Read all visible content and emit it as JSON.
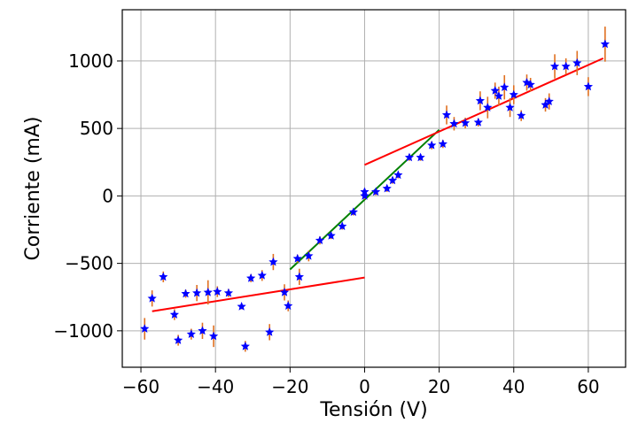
{
  "chart_data": {
    "type": "scatter",
    "xlabel": "Tensión (V)",
    "ylabel": "Corriente (mA)",
    "xlim": [
      -65,
      70
    ],
    "ylim": [
      -1270,
      1380
    ],
    "grid": true,
    "xticks": [
      -60,
      -40,
      -20,
      0,
      20,
      40,
      60
    ],
    "xtick_labels": [
      "−60",
      "−40",
      "−20",
      "0",
      "20",
      "40",
      "60"
    ],
    "yticks": [
      -1000,
      -500,
      0,
      500,
      1000
    ],
    "ytick_labels": [
      "−1000",
      "−500",
      "0",
      "500",
      "1000"
    ],
    "colors": {
      "points": "#0000ff",
      "errorbars": "#e07020",
      "fit_outer": "#ff0000",
      "fit_middle": "#008000",
      "grid": "#b0b0b0"
    },
    "points": [
      {
        "x": -59.0,
        "y": -985,
        "err": 80
      },
      {
        "x": -57.0,
        "y": -760,
        "err": 60
      },
      {
        "x": -54.0,
        "y": -600,
        "err": 40
      },
      {
        "x": -51.0,
        "y": -880,
        "err": 40
      },
      {
        "x": -50.0,
        "y": -1070,
        "err": 40
      },
      {
        "x": -48.0,
        "y": -725,
        "err": 30
      },
      {
        "x": -46.5,
        "y": -1025,
        "err": 40
      },
      {
        "x": -45.0,
        "y": -720,
        "err": 60
      },
      {
        "x": -43.5,
        "y": -1000,
        "err": 60
      },
      {
        "x": -42.0,
        "y": -715,
        "err": 90
      },
      {
        "x": -40.5,
        "y": -1040,
        "err": 80
      },
      {
        "x": -39.5,
        "y": -710,
        "err": 40
      },
      {
        "x": -36.5,
        "y": -720,
        "err": 30
      },
      {
        "x": -33.0,
        "y": -820,
        "err": 20
      },
      {
        "x": -32.0,
        "y": -1115,
        "err": 40
      },
      {
        "x": -30.5,
        "y": -610,
        "err": 30
      },
      {
        "x": -27.5,
        "y": -590,
        "err": 40
      },
      {
        "x": -25.5,
        "y": -1010,
        "err": 60
      },
      {
        "x": -24.5,
        "y": -490,
        "err": 60
      },
      {
        "x": -21.5,
        "y": -715,
        "err": 60
      },
      {
        "x": -20.5,
        "y": -815,
        "err": 40
      },
      {
        "x": -18.0,
        "y": -465,
        "err": 30
      },
      {
        "x": -17.5,
        "y": -600,
        "err": 60
      },
      {
        "x": -15.0,
        "y": -445,
        "err": 40
      },
      {
        "x": -12.0,
        "y": -330,
        "err": 30
      },
      {
        "x": -9.0,
        "y": -295,
        "err": 25
      },
      {
        "x": -6.0,
        "y": -225,
        "err": 25
      },
      {
        "x": -3.0,
        "y": -120,
        "err": 25
      },
      {
        "x": 0.0,
        "y": 30,
        "err": 25
      },
      {
        "x": 0.0,
        "y": 0,
        "err": 25
      },
      {
        "x": 3.0,
        "y": 30,
        "err": 25
      },
      {
        "x": 6.0,
        "y": 55,
        "err": 25
      },
      {
        "x": 7.5,
        "y": 115,
        "err": 25
      },
      {
        "x": 9.0,
        "y": 155,
        "err": 25
      },
      {
        "x": 12.0,
        "y": 285,
        "err": 25
      },
      {
        "x": 15.0,
        "y": 285,
        "err": 25
      },
      {
        "x": 18.0,
        "y": 375,
        "err": 30
      },
      {
        "x": 21.0,
        "y": 385,
        "err": 30
      },
      {
        "x": 22.0,
        "y": 600,
        "err": 70
      },
      {
        "x": 24.0,
        "y": 535,
        "err": 50
      },
      {
        "x": 27.0,
        "y": 540,
        "err": 40
      },
      {
        "x": 30.5,
        "y": 545,
        "err": 30
      },
      {
        "x": 31.0,
        "y": 705,
        "err": 70
      },
      {
        "x": 33.0,
        "y": 655,
        "err": 80
      },
      {
        "x": 35.0,
        "y": 780,
        "err": 60
      },
      {
        "x": 36.0,
        "y": 740,
        "err": 70
      },
      {
        "x": 37.5,
        "y": 805,
        "err": 90
      },
      {
        "x": 39.0,
        "y": 655,
        "err": 70
      },
      {
        "x": 40.0,
        "y": 750,
        "err": 70
      },
      {
        "x": 42.0,
        "y": 595,
        "err": 40
      },
      {
        "x": 43.5,
        "y": 840,
        "err": 60
      },
      {
        "x": 44.5,
        "y": 825,
        "err": 50
      },
      {
        "x": 48.5,
        "y": 675,
        "err": 50
      },
      {
        "x": 49.5,
        "y": 700,
        "err": 60
      },
      {
        "x": 51.0,
        "y": 960,
        "err": 90
      },
      {
        "x": 54.0,
        "y": 960,
        "err": 60
      },
      {
        "x": 57.0,
        "y": 985,
        "err": 90
      },
      {
        "x": 60.0,
        "y": 810,
        "err": 70
      },
      {
        "x": 64.5,
        "y": 1125,
        "err": 130
      }
    ],
    "fit_lines": [
      {
        "color": "#ff0000",
        "x": [
          -57,
          0
        ],
        "y": [
          -855,
          -605
        ]
      },
      {
        "color": "#008000",
        "x": [
          -20,
          20
        ],
        "y": [
          -545,
          490
        ]
      },
      {
        "color": "#ff0000",
        "x": [
          0,
          64
        ],
        "y": [
          230,
          1020
        ]
      }
    ]
  }
}
